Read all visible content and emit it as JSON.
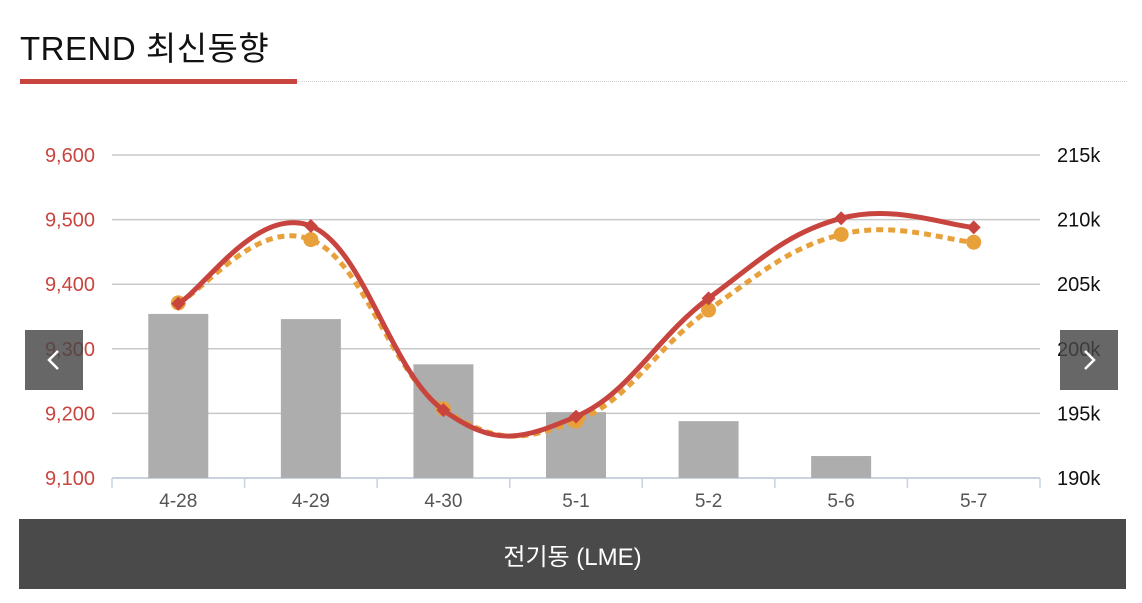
{
  "header": {
    "title": "TREND 최신동향"
  },
  "footer": {
    "label": "전기동 (LME)"
  },
  "nav": {
    "prev_icon": "chevron-left-icon",
    "next_icon": "chevron-right-icon"
  },
  "colors": {
    "accent": "#c8453f",
    "line_red": "#c8453f",
    "line_orange": "#e8a13a",
    "bar": "#adadad",
    "footer_bg": "#4a4a4a"
  },
  "chart_data": {
    "type": "bar+line",
    "categories": [
      "4-28",
      "4-29",
      "4-30",
      "5-1",
      "5-2",
      "5-6",
      "5-7"
    ],
    "left_axis": {
      "ticks": [
        "9,600",
        "9,500",
        "9,400",
        "9,300",
        "9,200",
        "9,100"
      ],
      "ylim": [
        9100,
        9600
      ]
    },
    "right_axis": {
      "ticks": [
        "215k",
        "210k",
        "205k",
        "200k",
        "195k",
        "190k"
      ],
      "ylim": [
        190000,
        215000
      ]
    },
    "series": [
      {
        "type": "bar",
        "axis": "right",
        "values": [
          202700,
          202300,
          198800,
          195100,
          194400,
          191700,
          189300
        ]
      },
      {
        "type": "line",
        "axis": "left",
        "style": "solid",
        "marker": "diamond",
        "values": [
          9370,
          9490,
          9205,
          9195,
          9378,
          9502,
          9488
        ]
      },
      {
        "type": "line",
        "axis": "left",
        "style": "dotted",
        "marker": "circle",
        "values": [
          9371,
          9469,
          9207,
          9188,
          9360,
          9477,
          9465
        ]
      }
    ],
    "grid": true
  }
}
